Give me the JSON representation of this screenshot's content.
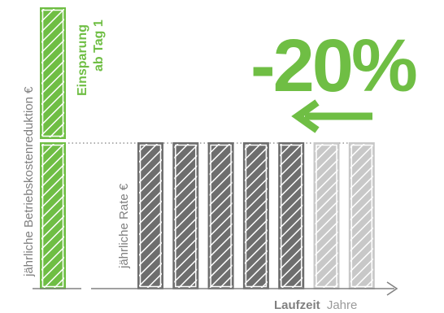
{
  "chart_data": [
    {
      "type": "bar",
      "ylabel": "jährliche Betriebskostenreduktion €",
      "annotation": "Einsparung ab Tag 1",
      "annotation_lines": [
        "Einsparung",
        "ab Tag 1"
      ],
      "categories": [
        "1"
      ],
      "series": [
        {
          "name": "",
          "values": [
            1.0
          ]
        }
      ],
      "highlight_values": [
        0.45
      ]
    },
    {
      "type": "bar",
      "ylabel": "jährliche Rate €",
      "xlabel": "Laufzeit Jahre",
      "xlabel_strong": "Laufzeit",
      "xlabel_light": "Jahre",
      "categories": [
        "1",
        "2",
        "3",
        "4",
        "5",
        "6",
        "7"
      ],
      "series": [
        {
          "name": "",
          "values": [
            1,
            1,
            1,
            1,
            1,
            1,
            1
          ]
        }
      ],
      "shortened_from_index": 5,
      "reduction_label": "-20%"
    }
  ],
  "colors": {
    "green": "#6fbe44",
    "dark_gray": "#6e6e6e",
    "light_gray": "#c8c8c8",
    "axis": "#808080"
  },
  "icons": {
    "arrow": "arrow-left-icon"
  }
}
